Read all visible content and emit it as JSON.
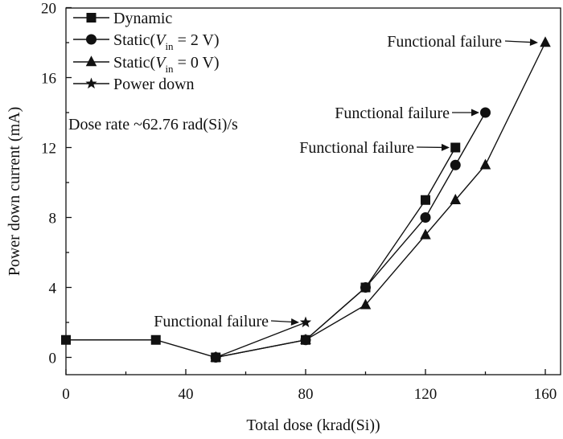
{
  "chart_data": {
    "type": "line",
    "xlabel": "Total dose (krad(Si))",
    "ylabel": "Power down current (mA)",
    "xlim": [
      0,
      170
    ],
    "ylim": [
      -1,
      20
    ],
    "x_ticks": [
      0,
      40,
      80,
      120,
      160
    ],
    "y_ticks": [
      0,
      4,
      8,
      12,
      16,
      20
    ],
    "legend_position": "top-left",
    "series": [
      {
        "name": "Dynamic",
        "marker": "square",
        "x": [
          0,
          30,
          50,
          80,
          100,
          120,
          130
        ],
        "y": [
          1,
          1,
          0,
          1,
          4,
          9,
          12
        ]
      },
      {
        "name": "Static(Vin = 2 V)",
        "marker": "circle",
        "x": [
          50,
          80,
          100,
          120,
          130,
          140
        ],
        "y": [
          0,
          1,
          4,
          8,
          11,
          14
        ]
      },
      {
        "name": "Static(Vin = 0 V)",
        "marker": "triangle",
        "x": [
          50,
          80,
          100,
          120,
          130,
          140,
          160
        ],
        "y": [
          0,
          1,
          3,
          7,
          9,
          11,
          18
        ]
      },
      {
        "name": "Power down",
        "marker": "star",
        "x": [
          50,
          80
        ],
        "y": [
          0,
          2
        ]
      }
    ],
    "legend": [
      {
        "marker": "square",
        "text": "Dynamic"
      },
      {
        "marker": "circle",
        "text_pre": "Static(",
        "text_var": "V",
        "text_sub": "in",
        "text_post": " = 2 V)"
      },
      {
        "marker": "triangle",
        "text_pre": "Static(",
        "text_var": "V",
        "text_sub": "in",
        "text_post": " = 0 V)"
      },
      {
        "marker": "star",
        "text": "Power down"
      }
    ],
    "annotations": [
      {
        "text": "Dose rate ~62.76 rad(Si)/s"
      },
      {
        "text": "Functional failure",
        "x": 80,
        "y": 2
      },
      {
        "text": "Functional failure",
        "x": 130,
        "y": 12
      },
      {
        "text": "Functional failure",
        "x": 140,
        "y": 14
      },
      {
        "text": "Functional failure",
        "x": 160,
        "y": 18
      }
    ]
  }
}
